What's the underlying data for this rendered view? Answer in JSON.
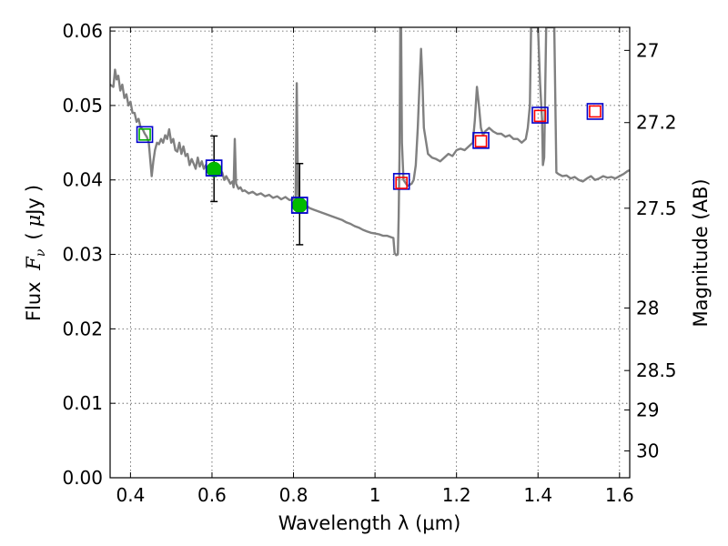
{
  "chart_data": {
    "type": "line",
    "xlabel": "Wavelength  λ (μm)",
    "ylabel": {
      "prefix": "Flux ",
      "symbol": "F",
      "subscript": "ν",
      "mu": "μ",
      "unit": "Jy",
      "open_paren": "(",
      "close_paren": ")"
    },
    "y2label": "Magnitude (AB)",
    "xlim": [
      0.35,
      1.625
    ],
    "ylim": [
      0.0,
      0.0605
    ],
    "x_ticks": [
      0.4,
      0.6,
      0.8,
      1.0,
      1.2,
      1.4,
      1.6
    ],
    "x_tick_labels": [
      "0.4",
      "0.6",
      "0.8",
      "1",
      "1.2",
      "1.4",
      "1.6"
    ],
    "y_ticks": [
      0.0,
      0.01,
      0.02,
      0.03,
      0.04,
      0.05,
      0.06
    ],
    "y_tick_labels": [
      "0.00",
      "0.01",
      "0.02",
      "0.03",
      "0.04",
      "0.05",
      "0.06"
    ],
    "y2_ticks": [
      {
        "label": "27",
        "flux": 0.0574
      },
      {
        "label": "27.2",
        "flux": 0.0477
      },
      {
        "label": "27.5",
        "flux": 0.0362
      },
      {
        "label": "28",
        "flux": 0.0228
      },
      {
        "label": "28.5",
        "flux": 0.0144
      },
      {
        "label": "29",
        "flux": 0.0091
      },
      {
        "label": "30",
        "flux": 0.0036
      }
    ],
    "grid": true,
    "series": [
      {
        "name": "model spectrum",
        "kind": "line",
        "color": "#808080",
        "points": [
          [
            0.35,
            0.0528
          ],
          [
            0.358,
            0.0525
          ],
          [
            0.362,
            0.0548
          ],
          [
            0.366,
            0.0535
          ],
          [
            0.37,
            0.054
          ],
          [
            0.375,
            0.052
          ],
          [
            0.38,
            0.0528
          ],
          [
            0.385,
            0.051
          ],
          [
            0.39,
            0.0515
          ],
          [
            0.395,
            0.05
          ],
          [
            0.4,
            0.0505
          ],
          [
            0.405,
            0.049
          ],
          [
            0.41,
            0.049
          ],
          [
            0.415,
            0.0478
          ],
          [
            0.42,
            0.0482
          ],
          [
            0.425,
            0.047
          ],
          [
            0.43,
            0.0468
          ],
          [
            0.435,
            0.0462
          ],
          [
            0.44,
            0.0458
          ],
          [
            0.445,
            0.045
          ],
          [
            0.448,
            0.043
          ],
          [
            0.452,
            0.0405
          ],
          [
            0.456,
            0.0425
          ],
          [
            0.46,
            0.044
          ],
          [
            0.465,
            0.045
          ],
          [
            0.47,
            0.0448
          ],
          [
            0.475,
            0.0455
          ],
          [
            0.48,
            0.045
          ],
          [
            0.485,
            0.046
          ],
          [
            0.49,
            0.0455
          ],
          [
            0.495,
            0.0468
          ],
          [
            0.5,
            0.045
          ],
          [
            0.505,
            0.0455
          ],
          [
            0.51,
            0.044
          ],
          [
            0.515,
            0.0438
          ],
          [
            0.52,
            0.045
          ],
          [
            0.525,
            0.0435
          ],
          [
            0.53,
            0.0445
          ],
          [
            0.535,
            0.0432
          ],
          [
            0.54,
            0.0435
          ],
          [
            0.545,
            0.042
          ],
          [
            0.55,
            0.0428
          ],
          [
            0.555,
            0.0422
          ],
          [
            0.56,
            0.0415
          ],
          [
            0.565,
            0.043
          ],
          [
            0.57,
            0.0418
          ],
          [
            0.575,
            0.0425
          ],
          [
            0.58,
            0.0415
          ],
          [
            0.585,
            0.042
          ],
          [
            0.59,
            0.0412
          ],
          [
            0.595,
            0.0418
          ],
          [
            0.6,
            0.041
          ],
          [
            0.605,
            0.0412
          ],
          [
            0.61,
            0.0405
          ],
          [
            0.615,
            0.0415
          ],
          [
            0.62,
            0.0408
          ],
          [
            0.625,
            0.041
          ],
          [
            0.63,
            0.04
          ],
          [
            0.635,
            0.0405
          ],
          [
            0.64,
            0.04
          ],
          [
            0.645,
            0.0395
          ],
          [
            0.65,
            0.0398
          ],
          [
            0.653,
            0.039
          ],
          [
            0.656,
            0.0455
          ],
          [
            0.659,
            0.0395
          ],
          [
            0.665,
            0.0388
          ],
          [
            0.67,
            0.039
          ],
          [
            0.675,
            0.0385
          ],
          [
            0.68,
            0.0386
          ],
          [
            0.69,
            0.0382
          ],
          [
            0.7,
            0.0384
          ],
          [
            0.71,
            0.038
          ],
          [
            0.72,
            0.0382
          ],
          [
            0.73,
            0.0378
          ],
          [
            0.74,
            0.038
          ],
          [
            0.75,
            0.0376
          ],
          [
            0.76,
            0.0378
          ],
          [
            0.77,
            0.0374
          ],
          [
            0.78,
            0.0377
          ],
          [
            0.79,
            0.0373
          ],
          [
            0.8,
            0.0374
          ],
          [
            0.805,
            0.0372
          ],
          [
            0.808,
            0.053
          ],
          [
            0.811,
            0.038
          ],
          [
            0.815,
            0.037
          ],
          [
            0.82,
            0.0368
          ],
          [
            0.83,
            0.0366
          ],
          [
            0.84,
            0.0362
          ],
          [
            0.85,
            0.036
          ],
          [
            0.86,
            0.0358
          ],
          [
            0.87,
            0.0356
          ],
          [
            0.88,
            0.0354
          ],
          [
            0.89,
            0.0352
          ],
          [
            0.9,
            0.035
          ],
          [
            0.91,
            0.0348
          ],
          [
            0.92,
            0.0346
          ],
          [
            0.93,
            0.0343
          ],
          [
            0.94,
            0.0341
          ],
          [
            0.95,
            0.0338
          ],
          [
            0.96,
            0.0336
          ],
          [
            0.97,
            0.0333
          ],
          [
            0.98,
            0.0331
          ],
          [
            0.99,
            0.0329
          ],
          [
            1.0,
            0.0328
          ],
          [
            1.01,
            0.0327
          ],
          [
            1.02,
            0.0325
          ],
          [
            1.03,
            0.0325
          ],
          [
            1.04,
            0.0323
          ],
          [
            1.045,
            0.0322
          ],
          [
            1.048,
            0.0302
          ],
          [
            1.052,
            0.0299
          ],
          [
            1.056,
            0.03
          ],
          [
            1.058,
            0.035
          ],
          [
            1.06,
            0.043
          ],
          [
            1.062,
            0.0605
          ],
          [
            1.064,
            0.0605
          ],
          [
            1.066,
            0.045
          ],
          [
            1.07,
            0.04
          ],
          [
            1.08,
            0.0392
          ],
          [
            1.09,
            0.0395
          ],
          [
            1.095,
            0.04
          ],
          [
            1.1,
            0.042
          ],
          [
            1.105,
            0.047
          ],
          [
            1.11,
            0.054
          ],
          [
            1.113,
            0.0576
          ],
          [
            1.116,
            0.054
          ],
          [
            1.12,
            0.047
          ],
          [
            1.13,
            0.0435
          ],
          [
            1.14,
            0.043
          ],
          [
            1.15,
            0.0428
          ],
          [
            1.16,
            0.0425
          ],
          [
            1.17,
            0.043
          ],
          [
            1.18,
            0.0435
          ],
          [
            1.19,
            0.0432
          ],
          [
            1.2,
            0.044
          ],
          [
            1.21,
            0.0442
          ],
          [
            1.22,
            0.044
          ],
          [
            1.23,
            0.0445
          ],
          [
            1.24,
            0.045
          ],
          [
            1.245,
            0.048
          ],
          [
            1.25,
            0.0525
          ],
          [
            1.255,
            0.05
          ],
          [
            1.26,
            0.047
          ],
          [
            1.265,
            0.046
          ],
          [
            1.27,
            0.0465
          ],
          [
            1.28,
            0.047
          ],
          [
            1.29,
            0.0465
          ],
          [
            1.3,
            0.0462
          ],
          [
            1.31,
            0.0462
          ],
          [
            1.32,
            0.0458
          ],
          [
            1.33,
            0.046
          ],
          [
            1.34,
            0.0455
          ],
          [
            1.35,
            0.0455
          ],
          [
            1.36,
            0.045
          ],
          [
            1.37,
            0.0455
          ],
          [
            1.375,
            0.047
          ],
          [
            1.38,
            0.05
          ],
          [
            1.383,
            0.0605
          ],
          [
            1.4,
            0.0605
          ],
          [
            1.405,
            0.053
          ],
          [
            1.41,
            0.048
          ],
          [
            1.412,
            0.042
          ],
          [
            1.415,
            0.043
          ],
          [
            1.42,
            0.0605
          ],
          [
            1.44,
            0.0605
          ],
          [
            1.445,
            0.041
          ],
          [
            1.45,
            0.0408
          ],
          [
            1.46,
            0.0405
          ],
          [
            1.47,
            0.0406
          ],
          [
            1.48,
            0.0402
          ],
          [
            1.49,
            0.0404
          ],
          [
            1.5,
            0.04
          ],
          [
            1.51,
            0.0398
          ],
          [
            1.52,
            0.0402
          ],
          [
            1.53,
            0.0405
          ],
          [
            1.54,
            0.04
          ],
          [
            1.55,
            0.0402
          ],
          [
            1.56,
            0.0405
          ],
          [
            1.57,
            0.0403
          ],
          [
            1.58,
            0.0404
          ],
          [
            1.59,
            0.0402
          ],
          [
            1.6,
            0.0405
          ],
          [
            1.61,
            0.0408
          ],
          [
            1.62,
            0.0412
          ],
          [
            1.625,
            0.0413
          ]
        ]
      },
      {
        "name": "blue squares",
        "kind": "square-marker",
        "color": "#0000cc",
        "points": [
          [
            0.435,
            0.0461
          ],
          [
            0.605,
            0.0416
          ],
          [
            0.815,
            0.0366
          ],
          [
            1.065,
            0.0398
          ],
          [
            1.26,
            0.0453
          ],
          [
            1.405,
            0.0487
          ],
          [
            1.54,
            0.0492
          ]
        ]
      },
      {
        "name": "red squares",
        "kind": "square-marker",
        "color": "#ff0000",
        "points": [
          [
            1.065,
            0.0396
          ],
          [
            1.26,
            0.0452
          ],
          [
            1.405,
            0.0486
          ],
          [
            1.54,
            0.0492
          ]
        ]
      },
      {
        "name": "green squares",
        "kind": "square-marker",
        "color": "#00b000",
        "points": [
          [
            0.435,
            0.0461
          ]
        ]
      },
      {
        "name": "observed photometry",
        "kind": "circle-errorbar",
        "color": "#00bb00",
        "points": [
          {
            "x": 0.605,
            "y": 0.0414,
            "ylow": 0.0371,
            "yhigh": 0.0459
          },
          {
            "x": 0.815,
            "y": 0.0366,
            "ylow": 0.0313,
            "yhigh": 0.0422
          }
        ]
      }
    ]
  }
}
